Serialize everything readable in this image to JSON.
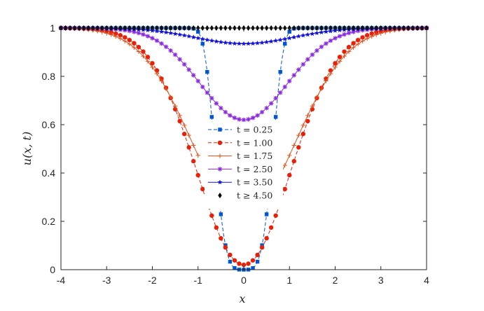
{
  "chart_data": {
    "type": "line",
    "title": "",
    "xlabel": "x",
    "ylabel": "u(x, t)",
    "xlim": [
      -4,
      4
    ],
    "ylim": [
      0,
      1
    ],
    "xticks": [
      -4,
      -3,
      -2,
      -1,
      0,
      1,
      2,
      3,
      4
    ],
    "xtick_labels": [
      "-4",
      "-3",
      "-2",
      "-1",
      "0",
      "1",
      "2",
      "3",
      "4"
    ],
    "yticks": [
      0,
      0.2,
      0.4,
      0.6,
      0.8,
      1
    ],
    "ytick_labels": [
      "0",
      "0.2",
      "0.4",
      "0.6",
      "0.8",
      "1"
    ],
    "grid": false,
    "legend_position": "center",
    "series": [
      {
        "name": "t = 0.25",
        "color": "#0055d4",
        "line": "dashed",
        "marker": "square",
        "shape": "gaussian",
        "min": 0.0,
        "sigma": 0.7,
        "power": 4,
        "gap": [
          -4,
          -4
        ]
      },
      {
        "name": "t = 1.00",
        "color": "#e8200a",
        "line": "dashed",
        "marker": "circle",
        "shape": "gaussian",
        "min": 0.02,
        "sigma": 1.45,
        "power": 2,
        "gap": [
          -4,
          -4
        ]
      },
      {
        "name": "t = 1.75",
        "color": "#e0501a",
        "line": "solid",
        "marker": "plus",
        "shape": "gaussian",
        "min": 0.22,
        "sigma": 1.6,
        "power": 2,
        "gap": [
          -1.0,
          0.8
        ]
      },
      {
        "name": "t = 2.50",
        "color": "#8a2be2",
        "line": "solid",
        "marker": "asterisk",
        "shape": "gaussian",
        "min": 0.62,
        "sigma": 1.35,
        "power": 2,
        "gap": [
          -4,
          -4
        ]
      },
      {
        "name": "t = 3.50",
        "color": "#1010e0",
        "line": "solid",
        "marker": "star",
        "shape": "gaussian",
        "min": 0.935,
        "sigma": 1.5,
        "power": 2,
        "gap": [
          -4,
          -4
        ]
      },
      {
        "name": "t ≥ 4.50",
        "color": "#000000",
        "line": "none",
        "marker": "diamond",
        "shape": "constant",
        "value": 1.0,
        "gap": [
          -4,
          -4
        ]
      }
    ]
  }
}
